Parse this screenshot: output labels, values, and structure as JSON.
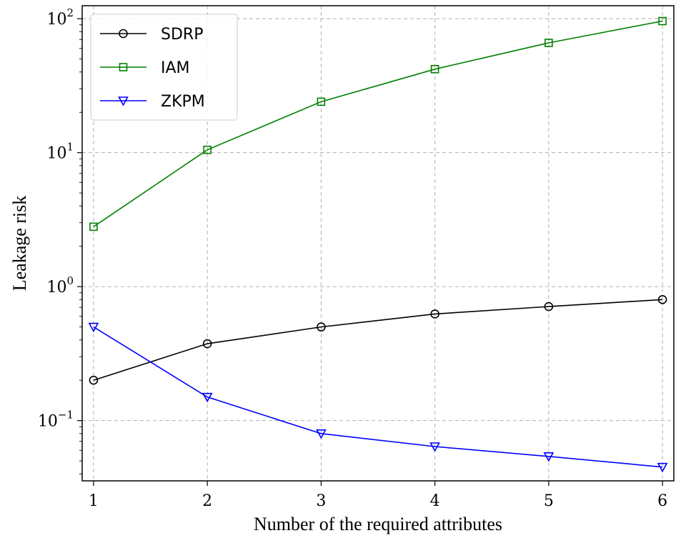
{
  "chart_data": {
    "type": "line",
    "xlabel": "Number of the required attributes",
    "ylabel": "Leakage risk",
    "x": [
      1,
      2,
      3,
      4,
      5,
      6
    ],
    "xlim": [
      0.9,
      6.1
    ],
    "ylim": [
      0.0355,
      125
    ],
    "yscale": "log",
    "yticks": [
      {
        "base": "10",
        "exp": "−1",
        "value": 0.1
      },
      {
        "base": "10",
        "exp": "0",
        "value": 1
      },
      {
        "base": "10",
        "exp": "1",
        "value": 10
      },
      {
        "base": "10",
        "exp": "2",
        "value": 100
      }
    ],
    "xtick_labels": [
      "1",
      "2",
      "3",
      "4",
      "5",
      "6"
    ],
    "grid": true,
    "legend_position": "top-left",
    "series": [
      {
        "name": "SDRP",
        "color": "#000000",
        "marker": "circle",
        "values": [
          0.2,
          0.375,
          0.5,
          0.625,
          0.71,
          0.8
        ]
      },
      {
        "name": "IAM",
        "color": "#008000",
        "marker": "square",
        "values": [
          2.8,
          10.5,
          24,
          42,
          66,
          96
        ]
      },
      {
        "name": "ZKPM",
        "color": "#0000ff",
        "marker": "triangle-down",
        "values": [
          0.5,
          0.15,
          0.08,
          0.064,
          0.054,
          0.045
        ]
      }
    ]
  }
}
